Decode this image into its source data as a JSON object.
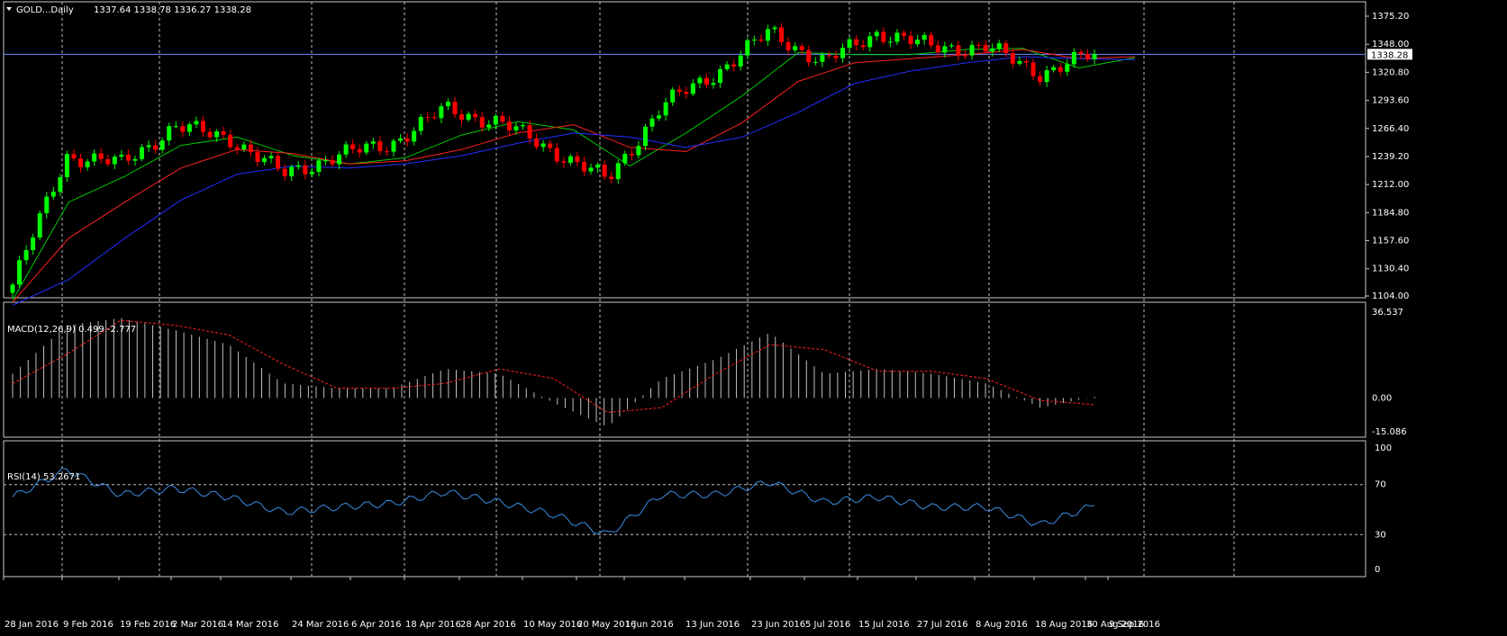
{
  "main_header": {
    "symbol": "GOLD...Daily",
    "ohlc": "1337.64 1338.78 1336.27 1338.28"
  },
  "price_axis": {
    "ticks": [
      "1375.20",
      "1348.00",
      "1320.80",
      "1293.60",
      "1266.40",
      "1239.20",
      "1212.00",
      "1184.80",
      "1157.60",
      "1130.40",
      "1104.00"
    ],
    "current_price_label": "1338.28"
  },
  "macd_header": {
    "text": "MACD(12,26,9) 0.499 -2.777"
  },
  "macd_axis": {
    "ticks": [
      "36.537",
      "0.00",
      "-15.086"
    ]
  },
  "rsi_header": {
    "text": "RSI(14) 53.2671"
  },
  "rsi_axis": {
    "ticks": [
      "100",
      "70",
      "30",
      "0"
    ]
  },
  "time_axis": {
    "labels": [
      "28 Jan 2016",
      "9 Feb 2016",
      "19 Feb 2016",
      "2 Mar 2016",
      "14 Mar 2016",
      "24 Mar 2016",
      "6 Apr 2016",
      "18 Apr 2016",
      "28 Apr 2016",
      "10 May 2016",
      "20 May 2016",
      "1 Jun 2016",
      "13 Jun 2016",
      "23 Jun 2016",
      "5 Jul 2016",
      "15 Jul 2016",
      "27 Jul 2016",
      "8 Aug 2016",
      "18 Aug 2016",
      "30 Aug 2016",
      "9 Sep 2016"
    ]
  },
  "colors": {
    "background": "#000000",
    "grid": "#c0c0c0",
    "bull_candle": "#00ff00",
    "bear_candle": "#ff0000",
    "ma_fast": "#00c800",
    "ma_mid": "#ff2020",
    "ma_slow": "#2030ff",
    "rsi_line": "#3a8ee6",
    "macd_hist": "#c0c0c0",
    "macd_signal": "#ff2020",
    "price_line": "#6a8cff"
  },
  "chart_data": [
    {
      "type": "candlestick",
      "title": "GOLD...Daily",
      "ylim": [
        1104.0,
        1375.2
      ],
      "x": [
        "28 Jan 2016",
        "9 Feb 2016",
        "19 Feb 2016",
        "2 Mar 2016",
        "14 Mar 2016",
        "24 Mar 2016",
        "6 Apr 2016",
        "18 Apr 2016",
        "28 Apr 2016",
        "10 May 2016",
        "20 May 2016",
        "1 Jun 2016",
        "13 Jun 2016",
        "23 Jun 2016",
        "5 Jul 2016",
        "15 Jul 2016",
        "27 Jul 2016",
        "8 Aug 2016",
        "18 Aug 2016",
        "30 Aug 2016",
        "9 Sep 2016"
      ],
      "close": [
        1115,
        1240,
        1232,
        1268,
        1258,
        1222,
        1240,
        1252,
        1285,
        1272,
        1245,
        1216,
        1288,
        1320,
        1360,
        1330,
        1360,
        1345,
        1345,
        1320,
        1338.28
      ],
      "series_ma": [
        {
          "name": "fast",
          "values": [
            1100,
            1195,
            1220,
            1250,
            1258,
            1240,
            1232,
            1238,
            1260,
            1273,
            1265,
            1230,
            1262,
            1298,
            1340,
            1338,
            1338,
            1343,
            1344,
            1325,
            1335
          ]
        },
        {
          "name": "mid",
          "values": [
            1098,
            1160,
            1195,
            1228,
            1246,
            1242,
            1232,
            1235,
            1246,
            1262,
            1270,
            1248,
            1244,
            1272,
            1312,
            1330,
            1334,
            1338,
            1343,
            1334,
            1336
          ]
        },
        {
          "name": "slow",
          "values": [
            1095,
            1120,
            1160,
            1197,
            1222,
            1230,
            1228,
            1232,
            1240,
            1252,
            1262,
            1258,
            1248,
            1258,
            1282,
            1310,
            1322,
            1330,
            1336,
            1334,
            1333
          ]
        }
      ]
    },
    {
      "type": "bar",
      "title": "MACD(12,26,9) 0.499 -2.777",
      "ylim": [
        -15.086,
        36.537
      ],
      "x": [
        "28 Jan 2016",
        "9 Feb 2016",
        "19 Feb 2016",
        "2 Mar 2016",
        "14 Mar 2016",
        "24 Mar 2016",
        "6 Apr 2016",
        "18 Apr 2016",
        "28 Apr 2016",
        "10 May 2016",
        "20 May 2016",
        "1 Jun 2016",
        "13 Jun 2016",
        "23 Jun 2016",
        "5 Jul 2016",
        "15 Jul 2016",
        "27 Jul 2016",
        "8 Aug 2016",
        "18 Aug 2016",
        "30 Aug 2016",
        "9 Sep 2016"
      ],
      "series": [
        {
          "name": "MACD",
          "values": [
            10,
            30,
            33,
            28,
            22,
            6,
            4,
            4,
            12,
            10,
            -2,
            -12,
            8,
            16,
            27,
            10,
            12,
            10,
            6,
            -4,
            0.499
          ]
        },
        {
          "name": "Signal",
          "values": [
            6,
            18,
            32,
            30,
            26,
            14,
            4,
            4,
            6,
            12,
            8,
            -6,
            -4,
            10,
            22,
            20,
            11,
            11,
            8,
            -1,
            -2.777
          ]
        }
      ]
    },
    {
      "type": "line",
      "title": "RSI(14) 53.2671",
      "ylim": [
        0,
        100
      ],
      "x": [
        "28 Jan 2016",
        "9 Feb 2016",
        "19 Feb 2016",
        "2 Mar 2016",
        "14 Mar 2016",
        "24 Mar 2016",
        "6 Apr 2016",
        "18 Apr 2016",
        "28 Apr 2016",
        "10 May 2016",
        "20 May 2016",
        "1 Jun 2016",
        "13 Jun 2016",
        "23 Jun 2016",
        "5 Jul 2016",
        "15 Jul 2016",
        "27 Jul 2016",
        "8 Aug 2016",
        "18 Aug 2016",
        "30 Aug 2016",
        "9 Sep 2016"
      ],
      "values": [
        60,
        82,
        62,
        67,
        60,
        48,
        52,
        55,
        64,
        56,
        46,
        30,
        62,
        62,
        72,
        56,
        60,
        52,
        52,
        38,
        53.2671
      ]
    }
  ]
}
